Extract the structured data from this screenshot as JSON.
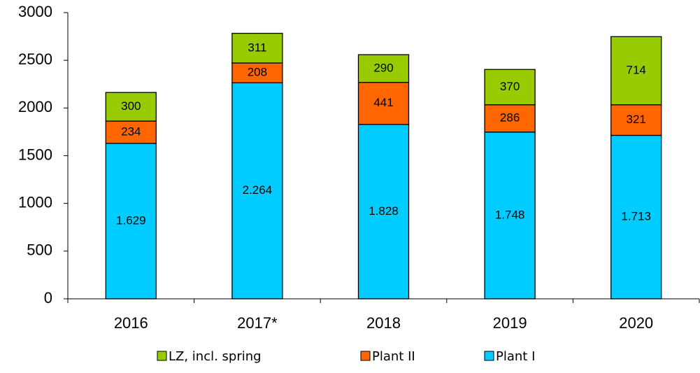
{
  "chart_data": {
    "type": "stacked_bar",
    "categories": [
      "2016",
      "2017*",
      "2018",
      "2019",
      "2020"
    ],
    "series": [
      {
        "name": "Plant I",
        "color": "#00ccff",
        "values": [
          1629,
          2264,
          1828,
          1748,
          1713
        ],
        "value_labels": [
          "1.629",
          "2.264",
          "1.828",
          "1.748",
          "1.713"
        ]
      },
      {
        "name": "Plant II",
        "color": "#ff6600",
        "values": [
          234,
          208,
          441,
          286,
          321
        ]
      },
      {
        "name": "LZ, incl. spring",
        "color": "#99cc00",
        "values": [
          300,
          311,
          290,
          370,
          714
        ]
      }
    ],
    "ylim": [
      0,
      3000
    ],
    "yticks": [
      0,
      500,
      1000,
      1500,
      2000,
      2500,
      3000
    ],
    "grid": false
  }
}
